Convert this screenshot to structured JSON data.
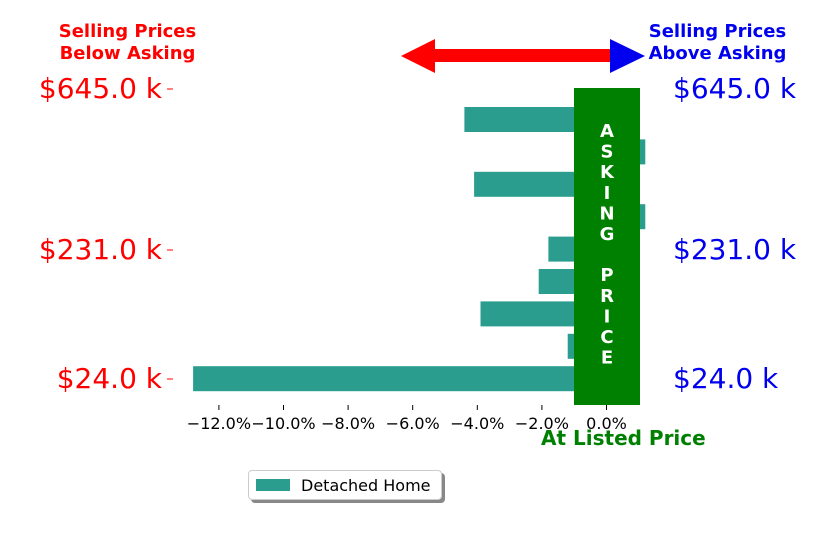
{
  "header": {
    "left_line1": "Selling Prices",
    "left_line2": "Below Asking",
    "right_line1": "Selling Prices",
    "right_line2": "Above Asking"
  },
  "asking_price_letters": [
    "A",
    "S",
    "K",
    "I",
    "N",
    "G",
    "",
    "P",
    "R",
    "I",
    "C",
    "E"
  ],
  "listed_label": "At Listed Price",
  "legend": {
    "label": "Detached Home",
    "color": "#2a9d8f"
  },
  "y_tick_labels": [
    "$645.0 k",
    "$231.0 k",
    "$24.0 k"
  ],
  "colors": {
    "below": "#ff0000",
    "above": "#0000ee",
    "asking": "#008000",
    "bar": "#2a9d8f",
    "arrow_left": "#ff0000",
    "arrow_right": "#0000ee"
  },
  "chart_data": {
    "type": "bar",
    "orientation": "horizontal",
    "x_tick_labels": [
      "−12.0%",
      "−10.0%",
      "−8.0%",
      "−6.0%",
      "−4.0%",
      "−2.0%",
      "0.0%"
    ],
    "x_ticks": [
      -12,
      -10,
      -8,
      -6,
      -4,
      -2,
      0
    ],
    "xlim": [
      -13.3,
      1.2
    ],
    "series": [
      {
        "name": "Detached Home",
        "values": [
          -4.4,
          1.2,
          -4.1,
          1.2,
          -1.8,
          -2.1,
          -3.9,
          -1.2,
          -12.8
        ]
      }
    ]
  }
}
